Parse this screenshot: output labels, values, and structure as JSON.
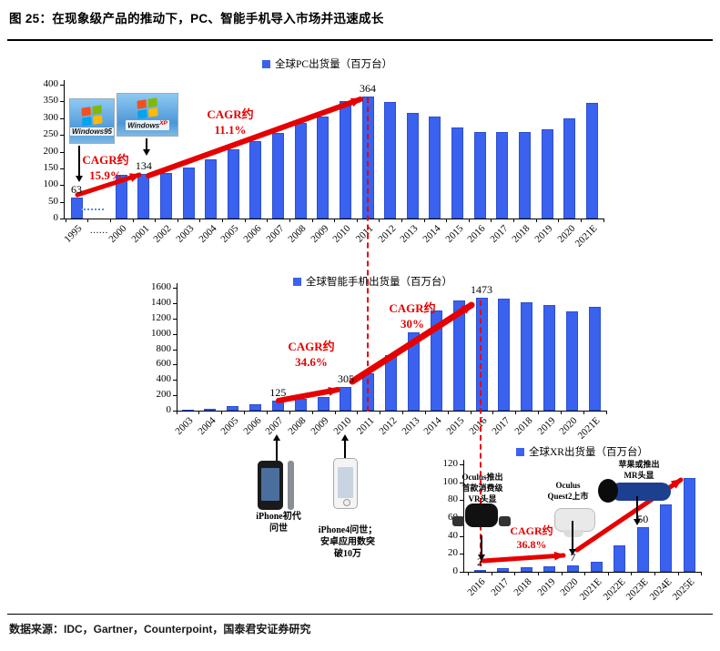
{
  "title": "图 25：在现象级产品的推动下，PC、智能手机导入市场并迅速成长",
  "footer": {
    "source_label": "数据来源：IDC，Gartner，Counterpoint，国泰君安证券研究"
  },
  "chart_data": [
    {
      "type": "bar",
      "name": "global-pc-shipments",
      "legend": "全球PC出货量（百万台）",
      "bar_color": "#3a62ef",
      "ylim": [
        0,
        400
      ],
      "ytick_step": 50,
      "categories": [
        "1995",
        "……",
        "2000",
        "2001",
        "2002",
        "2003",
        "2004",
        "2005",
        "2006",
        "2007",
        "2008",
        "2009",
        "2010",
        "2011",
        "2012",
        "2013",
        "2014",
        "2015",
        "2016",
        "2017",
        "2018",
        "2019",
        "2020",
        "2021E"
      ],
      "values": [
        63,
        null,
        131,
        134,
        136,
        152,
        178,
        207,
        230,
        257,
        287,
        305,
        350,
        364,
        349,
        315,
        306,
        272,
        258,
        259,
        258,
        267,
        300,
        345
      ],
      "bar_labels": {
        "1995": "63",
        "2001": "134",
        "2011": "364"
      }
    },
    {
      "type": "bar",
      "name": "global-smartphone-shipments",
      "legend": "全球智能手机出货量（百万台）",
      "bar_color": "#3a62ef",
      "ylim": [
        0,
        1600
      ],
      "ytick_step": 200,
      "categories": [
        "2003",
        "2004",
        "2005",
        "2006",
        "2007",
        "2008",
        "2009",
        "2010",
        "2011",
        "2012",
        "2013",
        "2014",
        "2015",
        "2016",
        "2017",
        "2018",
        "2019",
        "2020",
        "2021E"
      ],
      "values": [
        12,
        25,
        55,
        80,
        125,
        150,
        172,
        305,
        490,
        725,
        1019,
        1300,
        1437,
        1473,
        1462,
        1405,
        1371,
        1292,
        1350
      ],
      "bar_labels": {
        "2007": "125",
        "2010": "305",
        "2016": "1473"
      }
    },
    {
      "type": "bar",
      "name": "global-xr-shipments",
      "legend": "全球XR出货量（百万台）",
      "bar_color": "#3a62ef",
      "ylim": [
        0,
        120
      ],
      "ytick_step": 20,
      "categories": [
        "2016",
        "2017",
        "2018",
        "2019",
        "2020",
        "2021E",
        "2022E",
        "2023E",
        "2024E",
        "2025E"
      ],
      "values": [
        2,
        4,
        5,
        6.5,
        7,
        11,
        30,
        50,
        75,
        105
      ],
      "bar_labels": {
        "2016": "2",
        "2020": "7",
        "2023E": "50"
      }
    }
  ],
  "annotations": {
    "pc": {
      "cagr_early": [
        "CAGR约",
        "15.9%"
      ],
      "cagr_late": [
        "CAGR约",
        "11.1%"
      ],
      "windows95_label": "Windows",
      "windows95_sup": "95",
      "windowsxp_label": "Windows",
      "windowsxp_sup": "XP"
    },
    "smartphone": {
      "cagr_early": [
        "CAGR约",
        "34.6%"
      ],
      "cagr_late": [
        "CAGR约",
        "30%"
      ],
      "iphone1_label": [
        "iPhone初代",
        "问世"
      ],
      "iphone4_label": [
        "iPhone4问世；",
        "安卓应用数突",
        "破10万"
      ]
    },
    "xr": {
      "cagr": [
        "CAGR约",
        "36.8%"
      ],
      "oculus_vr_label": [
        "Oculus推出",
        "首款消费级",
        "VR头显"
      ],
      "quest2_label": [
        "Oculus",
        "Quest2上市"
      ],
      "apple_mr_label": [
        "苹果或推出",
        "MR头显"
      ]
    }
  }
}
